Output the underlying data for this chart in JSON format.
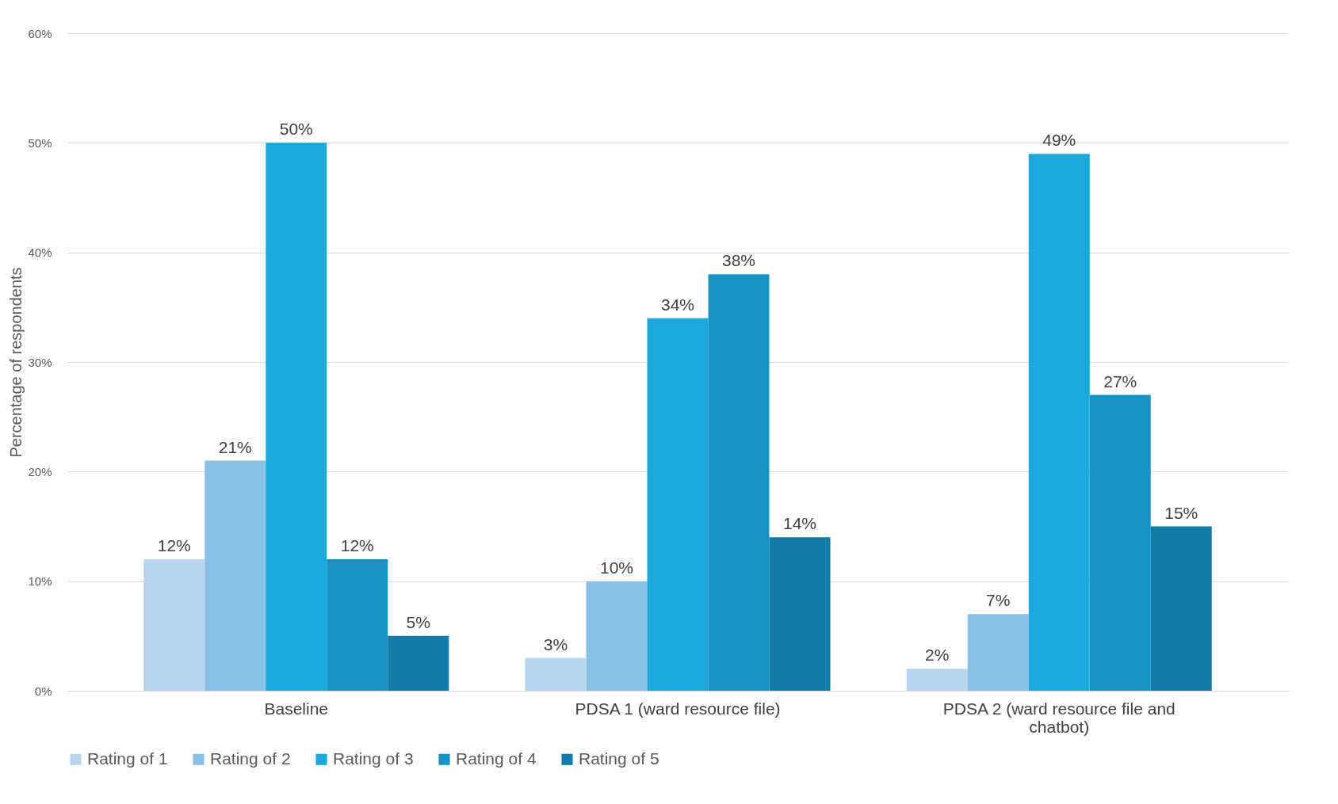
{
  "chart_data": {
    "type": "bar",
    "ylabel": "Percentage of respondents",
    "categories": [
      "Baseline",
      "PDSA 1 (ward resource file)",
      "PDSA 2 (ward resource file and chatbot)"
    ],
    "series": [
      {
        "name": "Rating of 1",
        "color": "#b7d6ee",
        "values": [
          12,
          3,
          2
        ],
        "value_labels": [
          "12%",
          "3%",
          "2%"
        ]
      },
      {
        "name": "Rating of 2",
        "color": "#88c0e4",
        "values": [
          21,
          10,
          7
        ],
        "value_labels": [
          "21%",
          "10%",
          "7%"
        ]
      },
      {
        "name": "Rating of 3",
        "color": "#1ba8dd",
        "values": [
          50,
          34,
          49
        ],
        "value_labels": [
          "50%",
          "34%",
          "49%"
        ]
      },
      {
        "name": "Rating of 4",
        "color": "#1893c6",
        "values": [
          12,
          38,
          27
        ],
        "value_labels": [
          "12%",
          "38%",
          "27%"
        ]
      },
      {
        "name": "Rating of 5",
        "color": "#137ca8",
        "values": [
          5,
          14,
          15
        ],
        "value_labels": [
          "5%",
          "14%",
          "15%"
        ]
      }
    ],
    "ylim": [
      0,
      60
    ],
    "yticks": [
      {
        "value": 0,
        "label": "0%"
      },
      {
        "value": 10,
        "label": "10%"
      },
      {
        "value": 20,
        "label": "20%"
      },
      {
        "value": 30,
        "label": "30%"
      },
      {
        "value": 40,
        "label": "40%"
      },
      {
        "value": 50,
        "label": "50%"
      },
      {
        "value": 60,
        "label": "60%"
      }
    ],
    "grid": "y",
    "legend": "bottom"
  }
}
